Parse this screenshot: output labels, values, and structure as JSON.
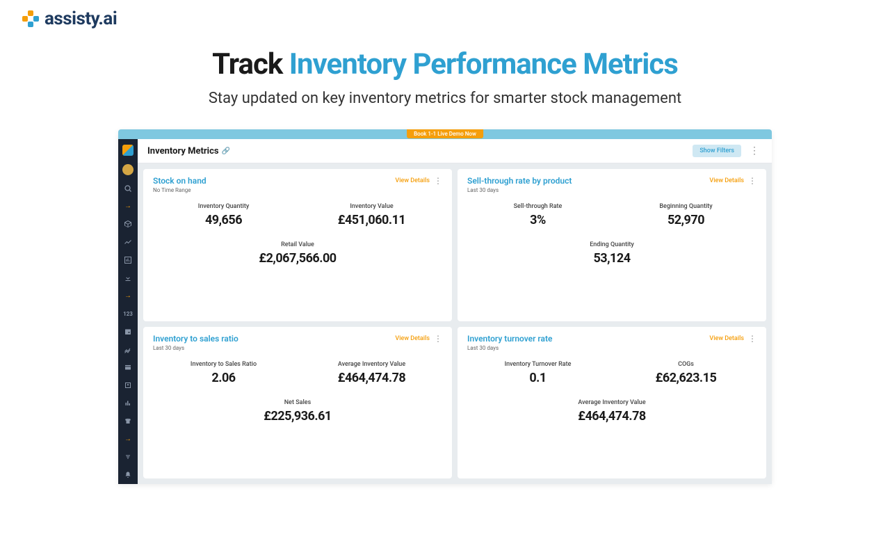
{
  "brand": {
    "name": "assisty.ai"
  },
  "hero": {
    "title_prefix": "Track ",
    "title_highlight": "Inventory Performance Metrics",
    "subtitle": "Stay updated on key inventory metrics for smarter stock management"
  },
  "banner": {
    "demo_label": "Book 1-1 Live Demo Now"
  },
  "page": {
    "title": "Inventory Metrics",
    "show_filters": "Show Filters"
  },
  "cards": [
    {
      "title": "Stock on hand",
      "sub": "No Time Range",
      "view": "View Details",
      "metrics_top": [
        {
          "label": "Inventory Quantity",
          "value": "49,656"
        },
        {
          "label": "Inventory Value",
          "value": "£451,060.11"
        }
      ],
      "metrics_bottom": [
        {
          "label": "Retail Value",
          "value": "£2,067,566.00"
        }
      ]
    },
    {
      "title": "Sell-through rate by product",
      "sub": "Last 30 days",
      "view": "View Details",
      "metrics_top": [
        {
          "label": "Sell-through Rate",
          "value": "3%"
        },
        {
          "label": "Beginning Quantity",
          "value": "52,970"
        }
      ],
      "metrics_bottom": [
        {
          "label": "Ending Quantity",
          "value": "53,124"
        }
      ]
    },
    {
      "title": "Inventory to sales ratio",
      "sub": "Last 30 days",
      "view": "View Details",
      "metrics_top": [
        {
          "label": "Inventory to Sales Ratio",
          "value": "2.06"
        },
        {
          "label": "Average Inventory Value",
          "value": "£464,474.78"
        }
      ],
      "metrics_bottom": [
        {
          "label": "Net Sales",
          "value": "£225,936.61"
        }
      ]
    },
    {
      "title": "Inventory turnover rate",
      "sub": "Last 30 days",
      "view": "View Details",
      "metrics_top": [
        {
          "label": "Inventory Turnover Rate",
          "value": "0.1"
        },
        {
          "label": "COGs",
          "value": "£62,623.15"
        }
      ],
      "metrics_bottom": [
        {
          "label": "Average Inventory Value",
          "value": "£464,474.78"
        }
      ]
    }
  ]
}
